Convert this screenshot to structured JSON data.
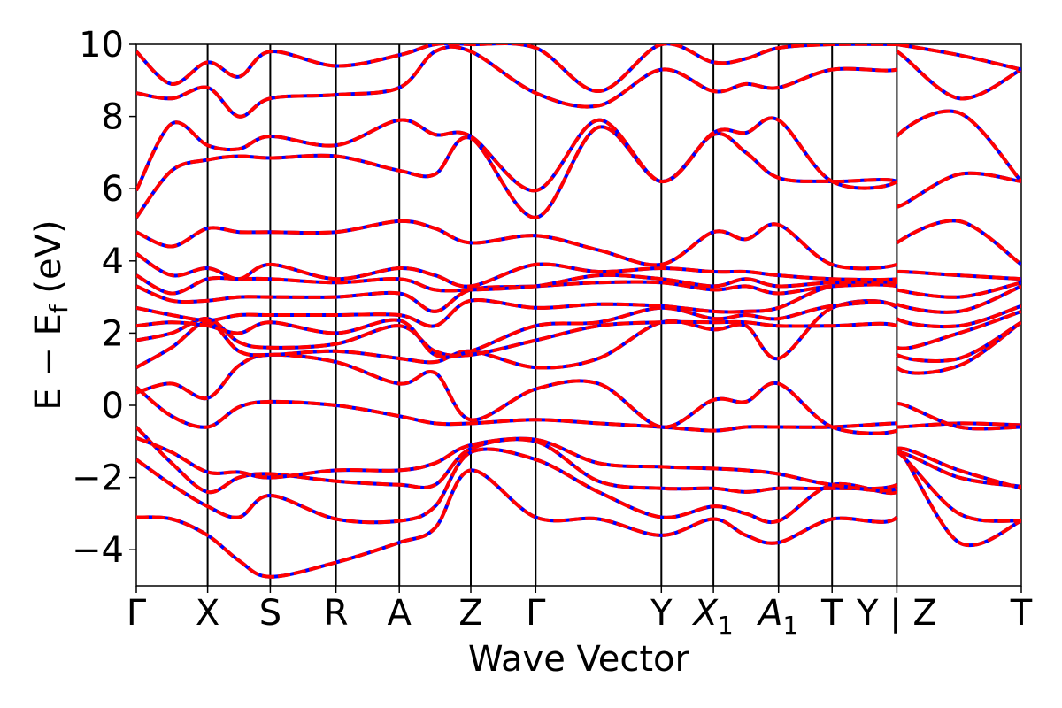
{
  "chart_data": {
    "type": "line",
    "title": "",
    "xlabel": "Wave Vector",
    "ylabel_parts": {
      "main": "E  −  E",
      "subscript": "f",
      "unit": " (eV)"
    },
    "ylim": [
      -5,
      10
    ],
    "yticks": [
      {
        "value": -4,
        "label": "−4"
      },
      {
        "value": -2,
        "label": "−2"
      },
      {
        "value": 0,
        "label": "0"
      },
      {
        "value": 2,
        "label": "2"
      },
      {
        "value": 4,
        "label": "4"
      },
      {
        "value": 6,
        "label": "6"
      },
      {
        "value": 8,
        "label": "8"
      },
      {
        "value": 10,
        "label": "10"
      }
    ],
    "kpath_length": 1.0,
    "high_symmetry_points": [
      {
        "pos": 0.0,
        "label": "Γ"
      },
      {
        "pos": 0.0806,
        "label": "X"
      },
      {
        "pos": 0.1514,
        "label": "S"
      },
      {
        "pos": 0.2256,
        "label": "R"
      },
      {
        "pos": 0.2972,
        "label": "A"
      },
      {
        "pos": 0.378,
        "label": "Z"
      },
      {
        "pos": 0.4513,
        "label": "Γ"
      },
      {
        "pos": 0.5933,
        "label": "Y"
      },
      {
        "pos": 0.6521,
        "label": "X",
        "sub": "1",
        "italic": true
      },
      {
        "pos": 0.7257,
        "label": "A",
        "sub": "1",
        "italic": true
      },
      {
        "pos": 0.7862,
        "label": "T"
      },
      {
        "pos": 0.8594,
        "label": "Y | Z"
      },
      {
        "pos": 1.0,
        "label": "T"
      }
    ],
    "series_styles": [
      {
        "role": "reference",
        "color": "#0000ff",
        "dashed": false
      },
      {
        "role": "overlay",
        "color": "#ff0000",
        "dashed": true
      }
    ],
    "bands": [
      [
        -3.1,
        -3.15,
        -3.6,
        -4.3,
        -4.75,
        -4.35,
        -3.8,
        -3.4,
        -1.8,
        -3.1,
        -3.15,
        -3.6,
        -3.15,
        -3.6,
        -3.8,
        -3.15,
        -3.1,
        -1.2,
        -3.8,
        -3.2
      ],
      [
        -1.5,
        -2.2,
        -2.8,
        -3.1,
        -2.5,
        -3.15,
        -3.2,
        -2.8,
        -1.3,
        -1.5,
        -2.4,
        -3.1,
        -2.8,
        -3.0,
        -3.2,
        -2.2,
        -2.4,
        -1.3,
        -3.0,
        -3.2
      ],
      [
        -0.6,
        -1.6,
        -2.4,
        -2.0,
        -1.9,
        -2.1,
        -2.2,
        -2.2,
        -1.2,
        -1.0,
        -2.1,
        -2.3,
        -2.3,
        -2.4,
        -2.3,
        -2.3,
        -2.2,
        -1.3,
        -2.0,
        -2.25
      ],
      [
        -0.9,
        -1.3,
        -1.85,
        -1.85,
        -2.0,
        -1.8,
        -1.8,
        -1.6,
        -1.1,
        -0.95,
        -1.6,
        -1.7,
        -1.75,
        -1.8,
        -1.9,
        -2.2,
        -2.3,
        -1.2,
        -1.8,
        -2.3
      ],
      [
        0.5,
        -0.3,
        -0.6,
        -0.05,
        0.1,
        0.0,
        -0.3,
        -0.5,
        -0.5,
        -0.4,
        -0.5,
        -0.6,
        -0.7,
        -0.6,
        -0.6,
        -0.6,
        -0.5,
        -0.6,
        -0.5,
        -0.55
      ],
      [
        0.35,
        0.6,
        0.2,
        1.1,
        1.4,
        1.2,
        0.6,
        0.9,
        -0.4,
        0.45,
        0.6,
        -0.6,
        0.15,
        0.1,
        0.6,
        -0.6,
        -0.7,
        0.05,
        -0.6,
        -0.6
      ],
      [
        1.05,
        1.6,
        2.3,
        1.5,
        1.4,
        1.5,
        1.3,
        1.2,
        1.5,
        1.05,
        1.3,
        2.3,
        2.1,
        2.2,
        1.3,
        2.7,
        2.7,
        1.05,
        1.1,
        2.3
      ],
      [
        1.8,
        2.0,
        2.4,
        1.75,
        1.6,
        1.7,
        2.2,
        1.5,
        1.4,
        1.8,
        2.2,
        2.3,
        2.3,
        2.3,
        2.2,
        2.2,
        2.2,
        1.4,
        1.3,
        2.3
      ],
      [
        2.2,
        2.3,
        2.2,
        2.0,
        2.3,
        2.0,
        2.35,
        1.4,
        1.5,
        2.2,
        2.3,
        2.7,
        2.4,
        2.5,
        2.4,
        2.75,
        2.75,
        1.6,
        2.0,
        2.6
      ],
      [
        2.7,
        2.5,
        2.35,
        2.5,
        2.5,
        2.5,
        2.5,
        2.2,
        2.9,
        2.7,
        2.8,
        2.75,
        2.6,
        2.6,
        2.7,
        3.3,
        3.3,
        2.4,
        2.2,
        2.75
      ],
      [
        3.3,
        2.9,
        2.9,
        3.0,
        3.0,
        3.0,
        3.1,
        2.6,
        3.2,
        3.3,
        3.4,
        3.4,
        3.2,
        3.3,
        3.1,
        3.3,
        3.3,
        2.8,
        2.6,
        3.3
      ],
      [
        3.6,
        3.1,
        3.5,
        3.5,
        3.5,
        3.4,
        3.5,
        3.2,
        3.2,
        3.3,
        3.6,
        3.5,
        3.3,
        3.5,
        3.3,
        3.4,
        3.4,
        3.2,
        3.0,
        3.4
      ],
      [
        4.2,
        3.6,
        3.8,
        3.5,
        3.9,
        3.5,
        3.8,
        3.6,
        3.3,
        3.9,
        3.7,
        3.8,
        3.7,
        3.7,
        3.6,
        3.5,
        3.5,
        3.7,
        3.6,
        3.5
      ],
      [
        4.8,
        4.4,
        4.9,
        4.8,
        4.8,
        4.8,
        5.1,
        4.9,
        4.5,
        4.7,
        4.3,
        3.9,
        4.8,
        4.6,
        5.0,
        3.9,
        3.9,
        4.5,
        5.1,
        3.9
      ],
      [
        5.2,
        6.5,
        6.8,
        6.9,
        6.85,
        6.9,
        6.5,
        6.4,
        7.4,
        5.2,
        7.7,
        6.2,
        7.5,
        7.0,
        6.3,
        6.2,
        6.2,
        5.5,
        6.4,
        6.2
      ],
      [
        5.95,
        7.8,
        7.2,
        7.1,
        7.45,
        7.2,
        7.9,
        7.5,
        7.45,
        5.95,
        7.9,
        6.2,
        7.55,
        7.55,
        7.9,
        6.2,
        6.2,
        7.45,
        8.1,
        6.2
      ],
      [
        8.65,
        8.5,
        8.8,
        8.0,
        8.5,
        8.6,
        8.8,
        9.8,
        9.8,
        8.65,
        8.3,
        9.3,
        8.7,
        8.9,
        8.8,
        9.3,
        9.3,
        9.8,
        8.5,
        9.3
      ],
      [
        9.8,
        8.9,
        9.5,
        9.1,
        9.8,
        9.4,
        9.7,
        10.0,
        10.0,
        9.9,
        8.7,
        10.0,
        9.5,
        9.6,
        9.9,
        10.0,
        10.0,
        10.0,
        9.7,
        9.3
      ]
    ],
    "band_x_fractions": [
      0.0,
      0.04,
      0.0806,
      0.116,
      0.1514,
      0.2256,
      0.2972,
      0.3376,
      0.378,
      0.4513,
      0.5223,
      0.5933,
      0.6521,
      0.6889,
      0.7257,
      0.7862,
      0.8594,
      0.8594,
      0.9297,
      1.0
    ],
    "legend": "none",
    "grid": false
  }
}
